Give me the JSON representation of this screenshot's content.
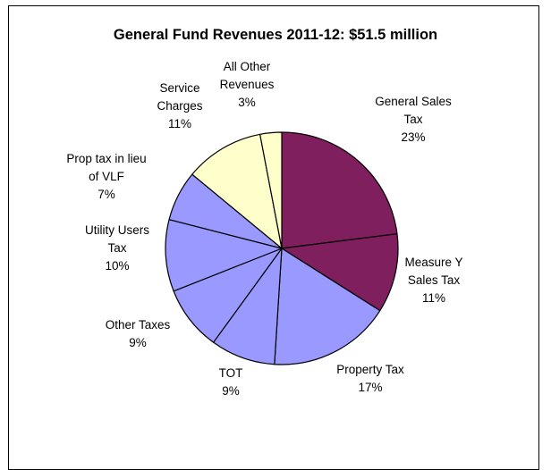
{
  "chart_data": {
    "type": "pie",
    "title": "General Fund Revenues 2011-12: $51.5 million",
    "slices": [
      {
        "label_lines": [
          "General Sales",
          "Tax",
          "23%"
        ],
        "label": "General Sales Tax",
        "value": 23,
        "color": "#7f1f5e"
      },
      {
        "label_lines": [
          "Measure Y",
          "Sales Tax",
          "11%"
        ],
        "label": "Measure Y Sales Tax",
        "value": 11,
        "color": "#7f1f5e"
      },
      {
        "label_lines": [
          "Property Tax",
          "17%"
        ],
        "label": "Property Tax",
        "value": 17,
        "color": "#9999ff"
      },
      {
        "label_lines": [
          "TOT",
          "9%"
        ],
        "label": "TOT",
        "value": 9,
        "color": "#9999ff"
      },
      {
        "label_lines": [
          "Other Taxes",
          "9%"
        ],
        "label": "Other Taxes",
        "value": 9,
        "color": "#9999ff"
      },
      {
        "label_lines": [
          "Utility Users",
          "Tax",
          "10%"
        ],
        "label": "Utility Users Tax",
        "value": 10,
        "color": "#9999ff"
      },
      {
        "label_lines": [
          "Prop tax in lieu",
          "of VLF",
          "7%"
        ],
        "label": "Prop tax in lieu of VLF",
        "value": 7,
        "color": "#9999ff"
      },
      {
        "label_lines": [
          "Service",
          "Charges",
          "11%"
        ],
        "label": "Service Charges",
        "value": 11,
        "color": "#ffffcc"
      },
      {
        "label_lines": [
          "All Other",
          "Revenues",
          "3%"
        ],
        "label": "All Other Revenues",
        "value": 3,
        "color": "#ffffcc"
      }
    ]
  }
}
